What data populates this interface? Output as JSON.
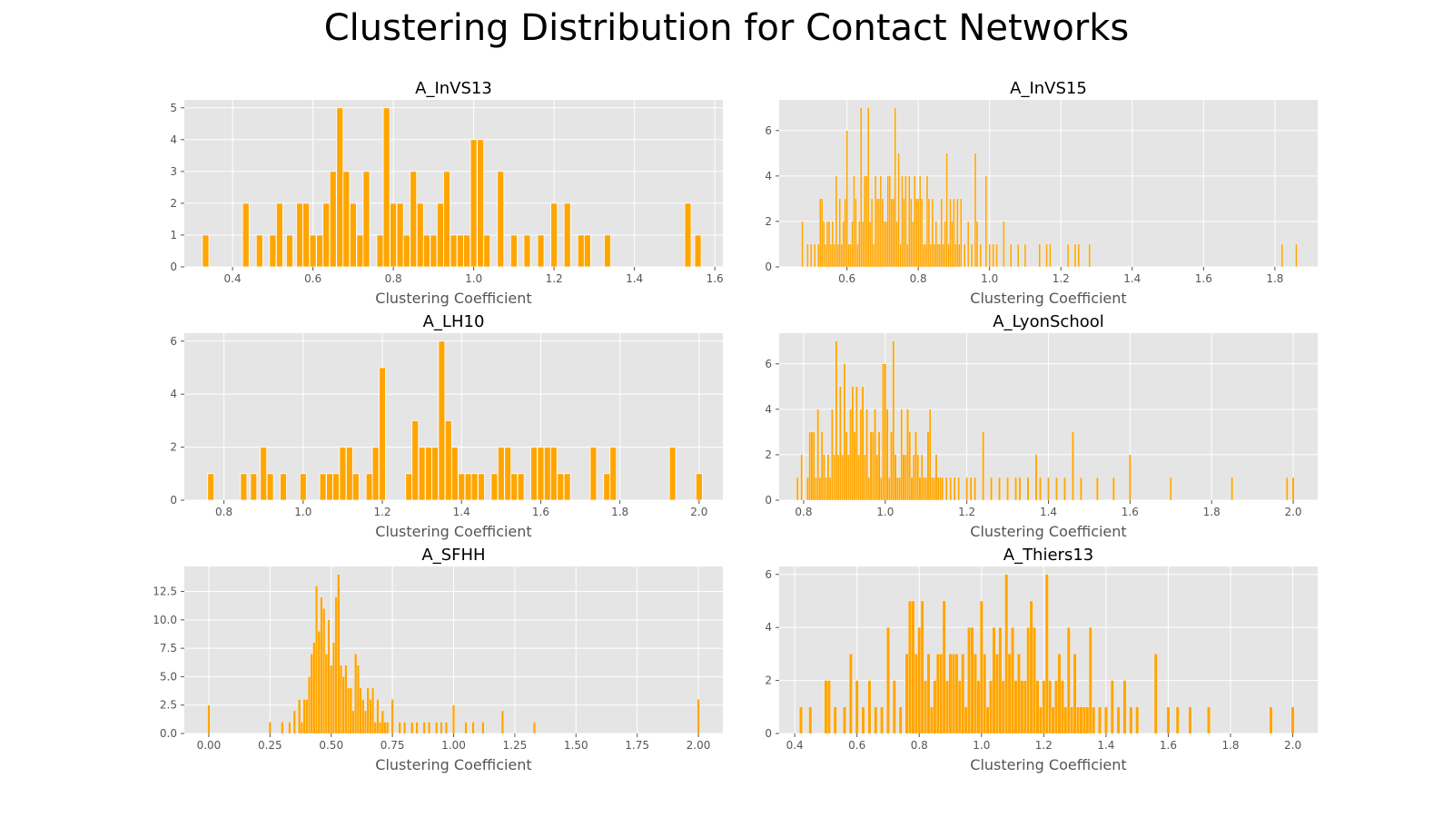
{
  "figure": {
    "suptitle": "Clustering Distribution for Contact Networks"
  },
  "colors": {
    "bar": "#FFA500",
    "bar_edge": "#FFFFFF",
    "axes_bg": "#E5E5E5",
    "grid": "#FFFFFF",
    "tick_text": "#555555"
  },
  "chart_data": [
    {
      "type": "bar",
      "title": "A_InVS13",
      "xlabel": "Clustering Coefficient",
      "ylabel": "",
      "xlim": [
        0.28,
        1.62
      ],
      "ylim": [
        0,
        5.25
      ],
      "xticks": [
        0.4,
        0.6,
        0.8,
        1.0,
        1.2,
        1.4,
        1.6
      ],
      "xtick_labels": [
        "0.4",
        "0.6",
        "0.8",
        "1.0",
        "1.2",
        "1.4",
        "1.6"
      ],
      "yticks": [
        0,
        1,
        2,
        3,
        4,
        5
      ],
      "ytick_labels": [
        "0",
        "1",
        "2",
        "3",
        "4",
        "5"
      ],
      "grid": true,
      "x": [
        0.333,
        0.433,
        0.467,
        0.5,
        0.517,
        0.542,
        0.567,
        0.583,
        0.6,
        0.617,
        0.633,
        0.65,
        0.667,
        0.683,
        0.7,
        0.717,
        0.733,
        0.767,
        0.783,
        0.8,
        0.817,
        0.833,
        0.85,
        0.867,
        0.883,
        0.9,
        0.917,
        0.933,
        0.95,
        0.967,
        0.983,
        1.0,
        1.017,
        1.033,
        1.067,
        1.1,
        1.133,
        1.167,
        1.2,
        1.233,
        1.267,
        1.283,
        1.333,
        1.533,
        1.558
      ],
      "values": [
        1,
        2,
        1,
        1,
        2,
        1,
        2,
        2,
        1,
        1,
        2,
        3,
        5,
        3,
        2,
        1,
        3,
        1,
        5,
        2,
        2,
        1,
        3,
        2,
        1,
        1,
        2,
        3,
        1,
        1,
        1,
        4,
        4,
        1,
        3,
        1,
        1,
        1,
        2,
        2,
        1,
        1,
        1,
        2,
        1
      ]
    },
    {
      "type": "bar",
      "title": "A_InVS15",
      "xlabel": "Clustering Coefficient",
      "ylabel": "",
      "xlim": [
        0.41,
        1.92
      ],
      "ylim": [
        0,
        7.35
      ],
      "xticks": [
        0.6,
        0.8,
        1.0,
        1.2,
        1.4,
        1.6,
        1.8
      ],
      "xtick_labels": [
        "0.6",
        "0.8",
        "1.0",
        "1.2",
        "1.4",
        "1.6",
        "1.8"
      ],
      "yticks": [
        0,
        2,
        4,
        6
      ],
      "ytick_labels": [
        "0",
        "2",
        "4",
        "6"
      ],
      "grid": true,
      "x": [
        0.475,
        0.49,
        0.5,
        0.51,
        0.52,
        0.525,
        0.53,
        0.535,
        0.54,
        0.545,
        0.55,
        0.555,
        0.56,
        0.565,
        0.57,
        0.575,
        0.58,
        0.585,
        0.59,
        0.595,
        0.6,
        0.605,
        0.61,
        0.615,
        0.62,
        0.625,
        0.63,
        0.635,
        0.64,
        0.645,
        0.65,
        0.655,
        0.66,
        0.665,
        0.67,
        0.675,
        0.68,
        0.685,
        0.69,
        0.695,
        0.7,
        0.705,
        0.71,
        0.715,
        0.72,
        0.725,
        0.73,
        0.735,
        0.74,
        0.745,
        0.75,
        0.755,
        0.76,
        0.765,
        0.77,
        0.775,
        0.78,
        0.785,
        0.79,
        0.795,
        0.8,
        0.805,
        0.81,
        0.815,
        0.82,
        0.825,
        0.83,
        0.835,
        0.84,
        0.845,
        0.85,
        0.855,
        0.86,
        0.865,
        0.87,
        0.875,
        0.88,
        0.885,
        0.89,
        0.895,
        0.9,
        0.905,
        0.91,
        0.915,
        0.92,
        0.93,
        0.94,
        0.95,
        0.96,
        0.965,
        0.975,
        0.99,
        1.0,
        1.01,
        1.02,
        1.04,
        1.06,
        1.08,
        1.1,
        1.14,
        1.16,
        1.17,
        1.22,
        1.24,
        1.25,
        1.28,
        1.82,
        1.86
      ],
      "values": [
        2,
        1,
        1,
        1,
        1,
        3,
        3,
        2,
        1,
        2,
        2,
        1,
        2,
        1,
        4,
        1,
        3,
        1,
        2,
        3,
        6,
        1,
        1,
        2,
        4,
        3,
        1,
        2,
        7,
        2,
        4,
        4,
        7,
        2,
        3,
        1,
        4,
        3,
        3,
        4,
        3,
        2,
        2,
        4,
        4,
        3,
        3,
        7,
        2,
        5,
        1,
        4,
        3,
        4,
        1,
        4,
        3,
        2,
        4,
        3,
        3,
        4,
        3,
        1,
        1,
        4,
        3,
        1,
        3,
        1,
        2,
        1,
        1,
        3,
        1,
        2,
        5,
        1,
        3,
        2,
        3,
        1,
        3,
        1,
        3,
        1,
        2,
        1,
        5,
        2,
        1,
        4,
        1,
        1,
        1,
        2,
        1,
        1,
        1,
        1,
        1,
        1,
        1,
        1,
        1,
        1,
        1,
        1
      ]
    },
    {
      "type": "bar",
      "title": "A_LH10",
      "xlabel": "Clustering Coefficient",
      "ylabel": "",
      "xlim": [
        0.7,
        2.06
      ],
      "ylim": [
        0,
        6.3
      ],
      "xticks": [
        0.8,
        1.0,
        1.2,
        1.4,
        1.6,
        1.8,
        2.0
      ],
      "xtick_labels": [
        "0.8",
        "1.0",
        "1.2",
        "1.4",
        "1.6",
        "1.8",
        "2.0"
      ],
      "yticks": [
        0,
        2,
        4,
        6
      ],
      "ytick_labels": [
        "0",
        "2",
        "4",
        "6"
      ],
      "grid": true,
      "x": [
        0.767,
        0.85,
        0.875,
        0.9,
        0.917,
        0.95,
        1.0,
        1.05,
        1.067,
        1.083,
        1.1,
        1.117,
        1.133,
        1.167,
        1.183,
        1.2,
        1.267,
        1.283,
        1.3,
        1.317,
        1.333,
        1.35,
        1.367,
        1.383,
        1.4,
        1.417,
        1.433,
        1.45,
        1.483,
        1.5,
        1.517,
        1.533,
        1.55,
        1.583,
        1.6,
        1.617,
        1.633,
        1.65,
        1.667,
        1.733,
        1.767,
        1.783,
        1.933,
        2.0
      ],
      "values": [
        1,
        1,
        1,
        2,
        1,
        1,
        1,
        1,
        1,
        1,
        2,
        2,
        1,
        1,
        2,
        5,
        1,
        3,
        2,
        2,
        2,
        6,
        3,
        2,
        1,
        1,
        1,
        1,
        1,
        2,
        2,
        1,
        1,
        2,
        2,
        2,
        2,
        1,
        1,
        2,
        1,
        2,
        2,
        1
      ]
    },
    {
      "type": "bar",
      "title": "A_LyonSchool",
      "xlabel": "Clustering Coefficient",
      "ylabel": "",
      "xlim": [
        0.74,
        2.06
      ],
      "ylim": [
        0,
        7.35
      ],
      "xticks": [
        0.8,
        1.0,
        1.2,
        1.4,
        1.6,
        1.8,
        2.0
      ],
      "xtick_labels": [
        "0.8",
        "1.0",
        "1.2",
        "1.4",
        "1.6",
        "1.8",
        "2.0"
      ],
      "yticks": [
        0,
        2,
        4,
        6
      ],
      "ytick_labels": [
        "0",
        "2",
        "4",
        "6"
      ],
      "grid": true,
      "x": [
        0.785,
        0.795,
        0.81,
        0.815,
        0.82,
        0.825,
        0.83,
        0.835,
        0.84,
        0.845,
        0.85,
        0.855,
        0.86,
        0.865,
        0.87,
        0.875,
        0.88,
        0.885,
        0.89,
        0.895,
        0.9,
        0.905,
        0.91,
        0.915,
        0.92,
        0.925,
        0.93,
        0.935,
        0.94,
        0.945,
        0.95,
        0.955,
        0.96,
        0.965,
        0.97,
        0.975,
        0.98,
        0.985,
        0.99,
        0.995,
        1.0,
        1.005,
        1.01,
        1.015,
        1.02,
        1.025,
        1.03,
        1.035,
        1.04,
        1.045,
        1.05,
        1.055,
        1.06,
        1.065,
        1.07,
        1.075,
        1.08,
        1.085,
        1.09,
        1.095,
        1.1,
        1.105,
        1.11,
        1.115,
        1.12,
        1.125,
        1.13,
        1.135,
        1.14,
        1.15,
        1.16,
        1.17,
        1.18,
        1.2,
        1.21,
        1.22,
        1.24,
        1.26,
        1.28,
        1.3,
        1.32,
        1.33,
        1.35,
        1.37,
        1.38,
        1.4,
        1.42,
        1.44,
        1.46,
        1.48,
        1.52,
        1.56,
        1.6,
        1.7,
        1.85,
        1.985,
        2.0
      ],
      "values": [
        1,
        2,
        1,
        3,
        3,
        3,
        1,
        4,
        1,
        3,
        2,
        1,
        2,
        1,
        4,
        2,
        7,
        2,
        5,
        2,
        6,
        3,
        2,
        4,
        5,
        3,
        5,
        2,
        4,
        5,
        2,
        4,
        1,
        3,
        3,
        4,
        2,
        3,
        1,
        6,
        6,
        4,
        1,
        3,
        7,
        2,
        1,
        1,
        4,
        2,
        2,
        4,
        3,
        1,
        2,
        3,
        2,
        1,
        2,
        1,
        1,
        3,
        4,
        1,
        1,
        2,
        1,
        1,
        1,
        1,
        1,
        1,
        1,
        1,
        1,
        1,
        3,
        1,
        1,
        1,
        1,
        1,
        1,
        2,
        1,
        1,
        1,
        1,
        3,
        1,
        1,
        1,
        2,
        1,
        1,
        1,
        1
      ]
    },
    {
      "type": "bar",
      "title": "A_SFHH",
      "xlabel": "Clustering Coefficient",
      "ylabel": "",
      "xlim": [
        -0.1,
        2.1
      ],
      "ylim": [
        0,
        14.7
      ],
      "xticks": [
        0.0,
        0.25,
        0.5,
        0.75,
        1.0,
        1.25,
        1.5,
        1.75,
        2.0
      ],
      "xtick_labels": [
        "0.00",
        "0.25",
        "0.50",
        "0.75",
        "1.00",
        "1.25",
        "1.50",
        "1.75",
        "2.00"
      ],
      "yticks": [
        0,
        2.5,
        5.0,
        7.5,
        10.0,
        12.5
      ],
      "ytick_labels": [
        "0.0",
        "2.5",
        "5.0",
        "7.5",
        "10.0",
        "12.5"
      ],
      "grid": true,
      "x": [
        0.0,
        0.25,
        0.3,
        0.33,
        0.35,
        0.37,
        0.38,
        0.39,
        0.4,
        0.41,
        0.42,
        0.43,
        0.44,
        0.45,
        0.46,
        0.47,
        0.48,
        0.49,
        0.5,
        0.51,
        0.52,
        0.53,
        0.54,
        0.55,
        0.56,
        0.57,
        0.58,
        0.59,
        0.6,
        0.61,
        0.62,
        0.63,
        0.64,
        0.65,
        0.66,
        0.67,
        0.68,
        0.69,
        0.7,
        0.71,
        0.72,
        0.73,
        0.75,
        0.78,
        0.8,
        0.83,
        0.85,
        0.88,
        0.9,
        0.93,
        0.95,
        0.97,
        1.0,
        1.05,
        1.08,
        1.12,
        1.2,
        1.33,
        2.0
      ],
      "values": [
        2.5,
        1,
        1,
        1,
        2,
        3,
        1,
        3,
        3,
        5,
        7,
        8,
        13,
        9,
        12,
        11,
        7,
        10,
        6,
        8,
        12,
        14,
        6,
        5,
        6,
        4,
        4,
        2,
        7,
        6,
        4,
        3,
        2,
        4,
        3,
        4,
        1,
        3,
        1,
        2,
        1,
        1,
        3,
        1,
        1,
        1,
        1,
        1,
        1,
        1,
        1,
        1,
        2.5,
        1,
        1,
        1,
        2,
        1,
        3
      ]
    },
    {
      "type": "bar",
      "title": "A_Thiers13",
      "xlabel": "Clustering Coefficient",
      "ylabel": "",
      "xlim": [
        0.35,
        2.08
      ],
      "ylim": [
        0,
        6.3
      ],
      "xticks": [
        0.4,
        0.6,
        0.8,
        1.0,
        1.2,
        1.4,
        1.6,
        1.8,
        2.0
      ],
      "xtick_labels": [
        "0.4",
        "0.6",
        "0.8",
        "1.0",
        "1.2",
        "1.4",
        "1.6",
        "1.8",
        "2.0"
      ],
      "yticks": [
        0,
        2,
        4,
        6
      ],
      "ytick_labels": [
        "0",
        "2",
        "4",
        "6"
      ],
      "grid": true,
      "x": [
        0.42,
        0.45,
        0.5,
        0.51,
        0.53,
        0.56,
        0.58,
        0.6,
        0.62,
        0.64,
        0.66,
        0.68,
        0.7,
        0.72,
        0.74,
        0.76,
        0.77,
        0.78,
        0.79,
        0.8,
        0.81,
        0.82,
        0.83,
        0.84,
        0.85,
        0.86,
        0.87,
        0.88,
        0.89,
        0.9,
        0.91,
        0.92,
        0.93,
        0.94,
        0.95,
        0.96,
        0.97,
        0.98,
        0.99,
        1.0,
        1.01,
        1.02,
        1.03,
        1.04,
        1.05,
        1.06,
        1.07,
        1.08,
        1.09,
        1.1,
        1.11,
        1.12,
        1.13,
        1.14,
        1.15,
        1.16,
        1.17,
        1.18,
        1.19,
        1.2,
        1.21,
        1.22,
        1.23,
        1.24,
        1.25,
        1.26,
        1.27,
        1.28,
        1.29,
        1.3,
        1.31,
        1.32,
        1.33,
        1.34,
        1.35,
        1.36,
        1.38,
        1.4,
        1.42,
        1.44,
        1.46,
        1.48,
        1.5,
        1.56,
        1.6,
        1.63,
        1.67,
        1.73,
        1.93,
        2.0
      ],
      "values": [
        1,
        1,
        2,
        2,
        1,
        1,
        3,
        2,
        1,
        2,
        1,
        1,
        4,
        2,
        1,
        3,
        5,
        5,
        3,
        4,
        5,
        2,
        3,
        1,
        2,
        3,
        3,
        5,
        2,
        3,
        3,
        3,
        2,
        3,
        1,
        4,
        4,
        3,
        2,
        5,
        3,
        1,
        2,
        4,
        3,
        4,
        2,
        6,
        3,
        4,
        2,
        3,
        2,
        2,
        4,
        5,
        4,
        2,
        1,
        2,
        6,
        2,
        1,
        2,
        3,
        2,
        1,
        4,
        1,
        3,
        1,
        1,
        1,
        1,
        4,
        1,
        1,
        1,
        2,
        1,
        2,
        1,
        1,
        3,
        1,
        1,
        1,
        1,
        1,
        1
      ]
    }
  ]
}
